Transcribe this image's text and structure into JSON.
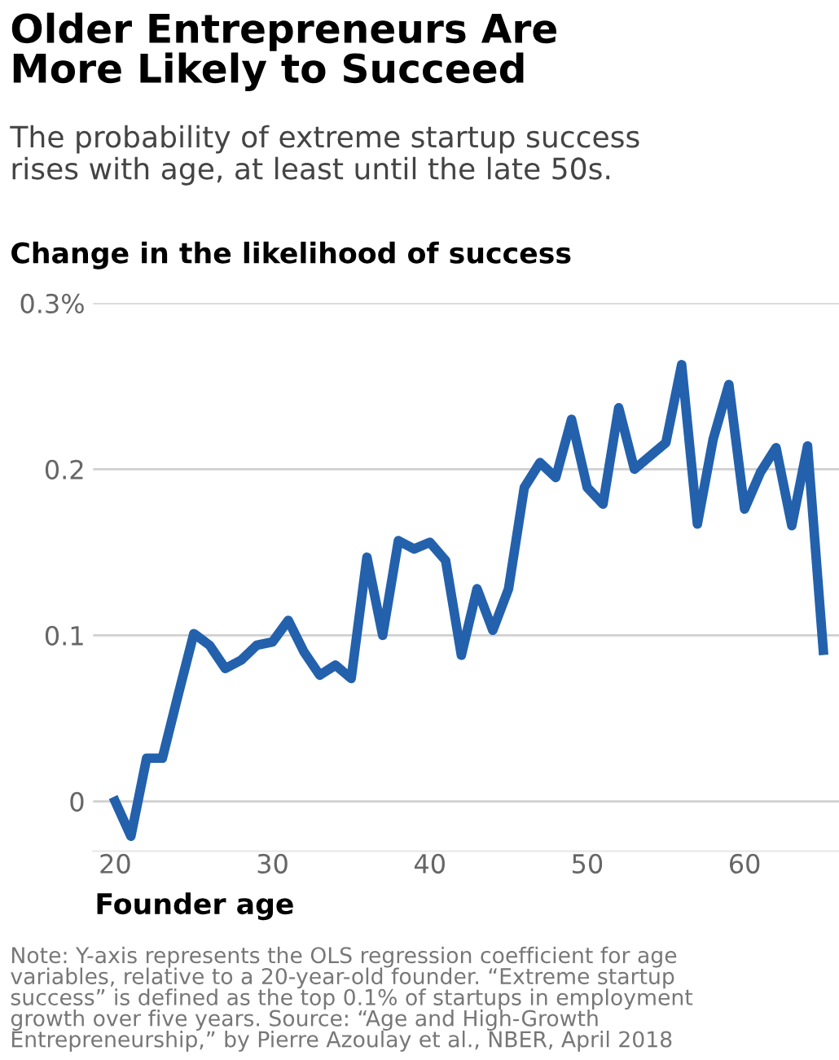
{
  "chart_data": {
    "type": "line",
    "title": "Older Entrepreneurs Are\nMore Likely to Succeed",
    "subtitle": "The probability of extreme startup success\nrises with age, at least until the late 50s.",
    "ylabel": "Change in the likelihood of success",
    "xlabel": "Founder age",
    "annotations": [
      "Note: Y-axis represents the OLS regression coefficient for age\nvariables, relative to a 20-year-old founder. “Extreme startup\nsuccess” is defined as the top 0.1% of startups in employment\ngrowth over five years. Source: “Age and High-Growth\nEntrepreneurship,” by Pierre Azoulay et al., NBER, April 2018"
    ],
    "x": [
      20,
      21,
      22,
      23,
      24,
      25,
      26,
      27,
      28,
      29,
      30,
      31,
      32,
      33,
      34,
      35,
      36,
      37,
      38,
      39,
      40,
      41,
      42,
      43,
      44,
      45,
      46,
      47,
      48,
      49,
      50,
      51,
      52,
      53,
      54,
      55,
      56,
      57,
      58,
      59,
      60,
      61,
      62,
      63,
      64,
      65
    ],
    "series": [
      {
        "color": "#2361ad",
        "values": [
          0,
          -0.021,
          0.026,
          0.026,
          0.064,
          0.101,
          0.094,
          0.08,
          0.085,
          0.094,
          0.096,
          0.109,
          0.09,
          0.076,
          0.082,
          0.074,
          0.147,
          0.1,
          0.157,
          0.152,
          0.156,
          0.145,
          0.088,
          0.128,
          0.103,
          0.128,
          0.189,
          0.204,
          0.195,
          0.23,
          0.189,
          0.179,
          0.237,
          0.2,
          0.208,
          0.216,
          0.263,
          0.167,
          0.218,
          0.251,
          0.176,
          0.198,
          0.213,
          0.166,
          0.214,
          0.091
        ]
      }
    ],
    "xlim": [
      18.6,
      66
    ],
    "ylim": [
      -0.03,
      0.3
    ],
    "xticks": [
      20,
      30,
      40,
      50,
      60
    ],
    "yticks": [
      {
        "value": 0,
        "label": "0"
      },
      {
        "value": 0.1,
        "label": "0.1"
      },
      {
        "value": 0.2,
        "label": "0.2"
      },
      {
        "value": 0.3,
        "label": "0.3%"
      }
    ],
    "grid": "y",
    "legend": false,
    "marker": "none",
    "line_style": "solid"
  }
}
